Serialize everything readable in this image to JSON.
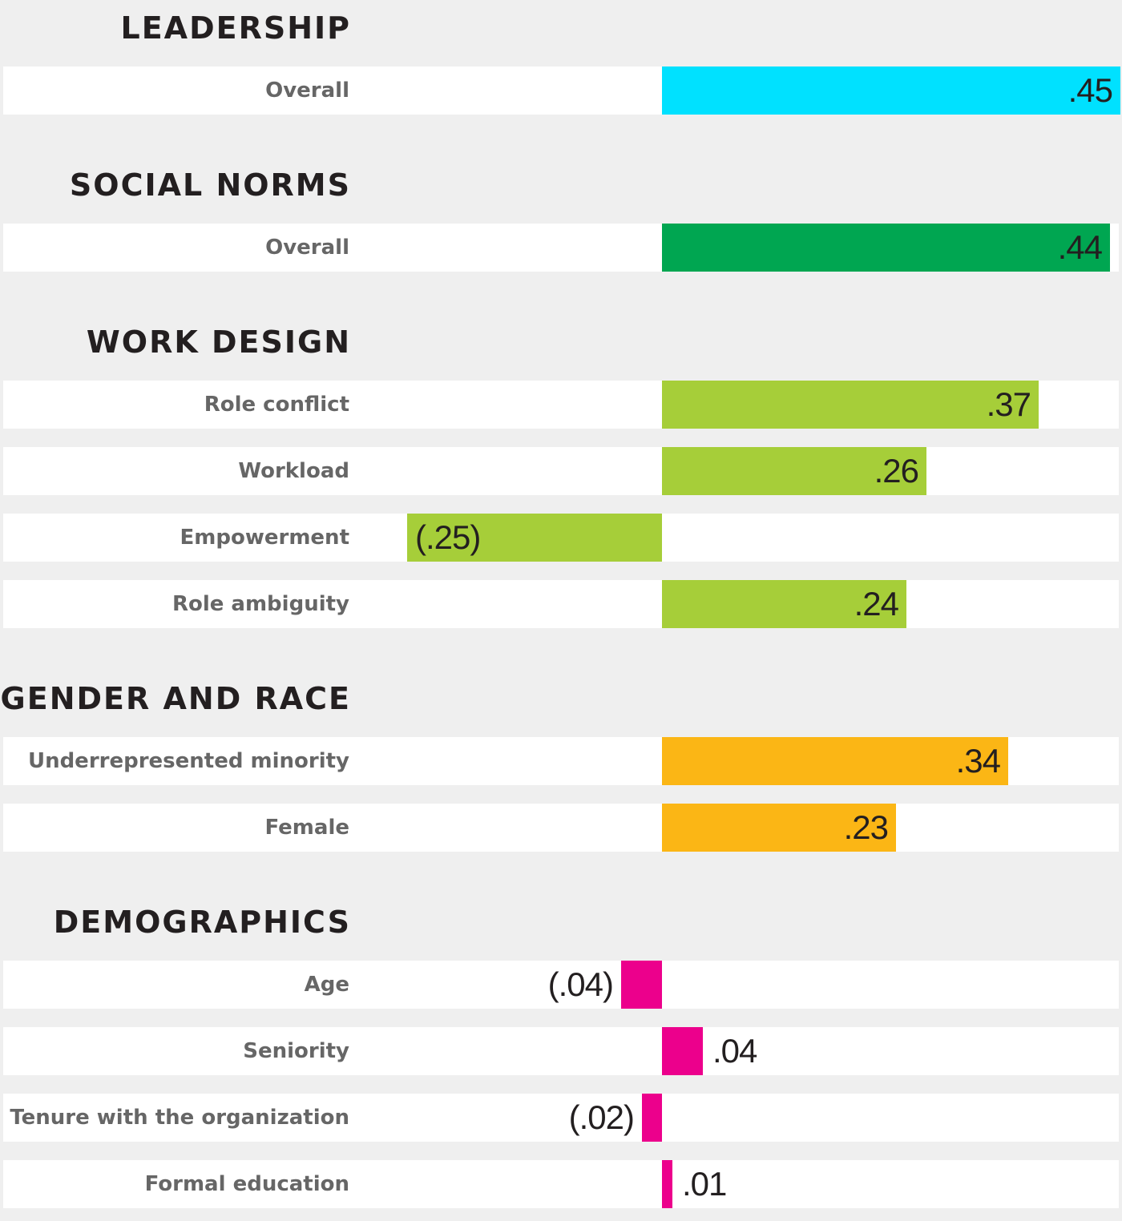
{
  "chart_data": {
    "type": "bar",
    "orientation": "horizontal",
    "title": "",
    "xlim": [
      -0.25,
      0.45
    ],
    "grid": false,
    "legend": "none",
    "groups": [
      {
        "name": "LEADERSHIP",
        "color": "#00e1ff",
        "items": [
          {
            "label": "Overall",
            "value": 0.45,
            "display": ".45"
          }
        ]
      },
      {
        "name": "SOCIAL NORMS",
        "color": "#00a651",
        "items": [
          {
            "label": "Overall",
            "value": 0.44,
            "display": ".44"
          }
        ]
      },
      {
        "name": "WORK DESIGN",
        "color": "#a6ce39",
        "items": [
          {
            "label": "Role conflict",
            "value": 0.37,
            "display": ".37"
          },
          {
            "label": "Workload",
            "value": 0.26,
            "display": ".26"
          },
          {
            "label": "Empowerment",
            "value": -0.25,
            "display": "(.25)"
          },
          {
            "label": "Role ambiguity",
            "value": 0.24,
            "display": ".24"
          }
        ]
      },
      {
        "name": "GENDER AND RACE",
        "color": "#fbb615",
        "items": [
          {
            "label": "Underrepresented minority",
            "value": 0.34,
            "display": ".34"
          },
          {
            "label": "Female",
            "value": 0.23,
            "display": ".23"
          }
        ]
      },
      {
        "name": "DEMOGRAPHICS",
        "color": "#ec008c",
        "items": [
          {
            "label": "Age",
            "value": -0.04,
            "display": "(.04)"
          },
          {
            "label": "Seniority",
            "value": 0.04,
            "display": ".04"
          },
          {
            "label": "Tenure with the organization",
            "value": -0.02,
            "display": "(.02)"
          },
          {
            "label": "Formal education",
            "value": 0.01,
            "display": ".01"
          }
        ]
      }
    ]
  }
}
